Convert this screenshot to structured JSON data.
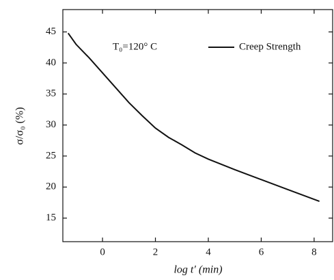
{
  "chart_data": {
    "type": "line",
    "annotation": "T₀=120° C",
    "x_label": "log t′ (min)",
    "y_label": "σ/σ₀ (%)",
    "x": [
      -1.3,
      -1,
      -0.5,
      0,
      0.5,
      1,
      1.5,
      2,
      2.5,
      3,
      3.5,
      4,
      5,
      6,
      7,
      8.2
    ],
    "series": [
      {
        "name": "Creep Strength",
        "color": "#111111",
        "values": [
          44.8,
          43.0,
          40.8,
          38.4,
          36.0,
          33.6,
          31.5,
          29.5,
          28.0,
          26.8,
          25.5,
          24.5,
          22.8,
          21.2,
          19.6,
          17.7
        ]
      }
    ],
    "xlim": [
      -1.5,
      8.7
    ],
    "xticks": [
      0,
      2,
      4,
      6,
      8
    ],
    "ylim": [
      11.2,
      48.6
    ],
    "yticks": [
      15,
      20,
      25,
      30,
      35,
      40,
      45
    ],
    "grid": false,
    "legend": "upper right"
  }
}
